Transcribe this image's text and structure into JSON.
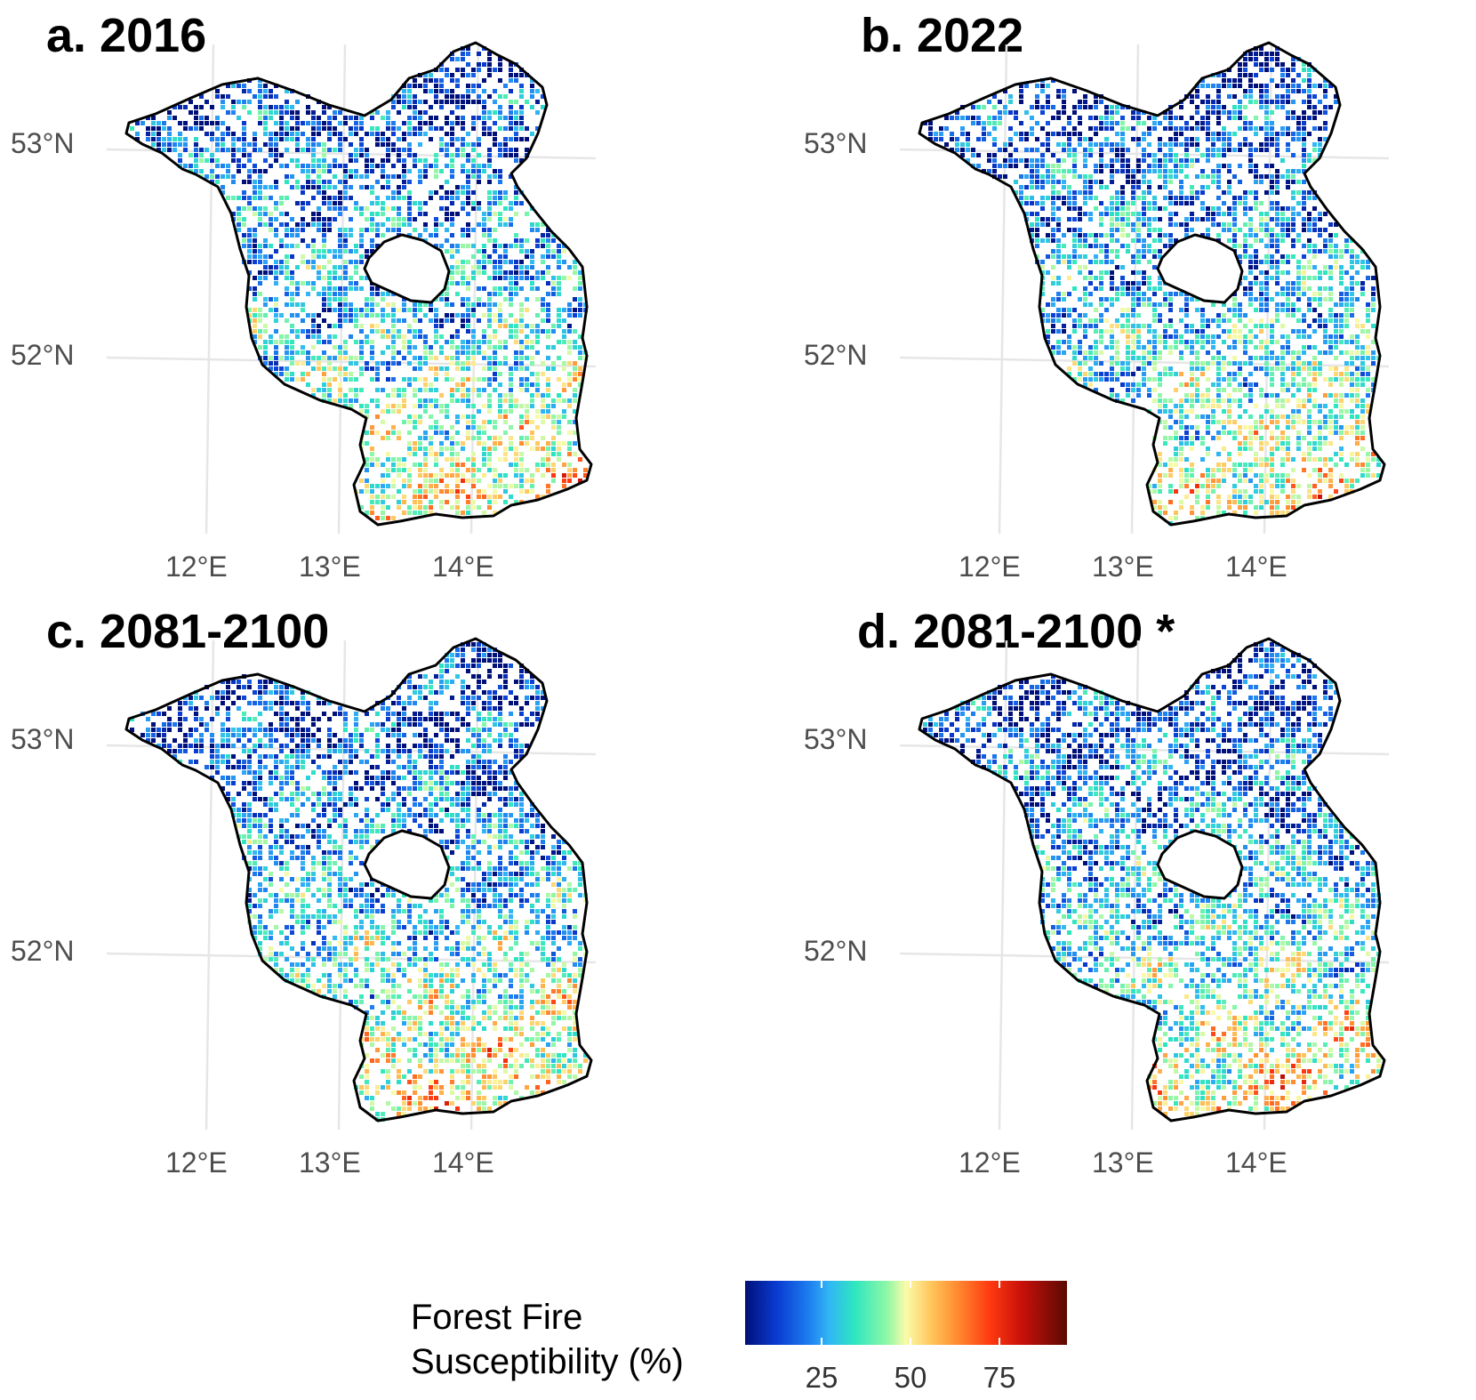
{
  "panels": [
    {
      "title": "a. 2016",
      "seed": 11,
      "hot": 0.5
    },
    {
      "title": "b. 2022",
      "seed": 23,
      "hot": 0.46
    },
    {
      "title": "c. 2081-2100",
      "seed": 37,
      "hot": 0.55
    },
    {
      "title": "d. 2081-2100 *",
      "seed": 53,
      "hot": 0.52
    }
  ],
  "axis": {
    "lat_labels": [
      "53°N",
      "52°N"
    ],
    "lon_labels": [
      "12°E",
      "13°E",
      "14°E"
    ]
  },
  "legend": {
    "title_line1": "Forest Fire",
    "title_line2": "Susceptibility (%)",
    "ticks": [
      "25",
      "50",
      "75"
    ],
    "colors": [
      "#00107a",
      "#0a3cd2",
      "#1e7ff0",
      "#31b6f5",
      "#2ee6c0",
      "#8ef7a6",
      "#fbfba8",
      "#ffc45a",
      "#ff8a30",
      "#ff3a10",
      "#c8100a",
      "#5a0a02"
    ]
  }
}
